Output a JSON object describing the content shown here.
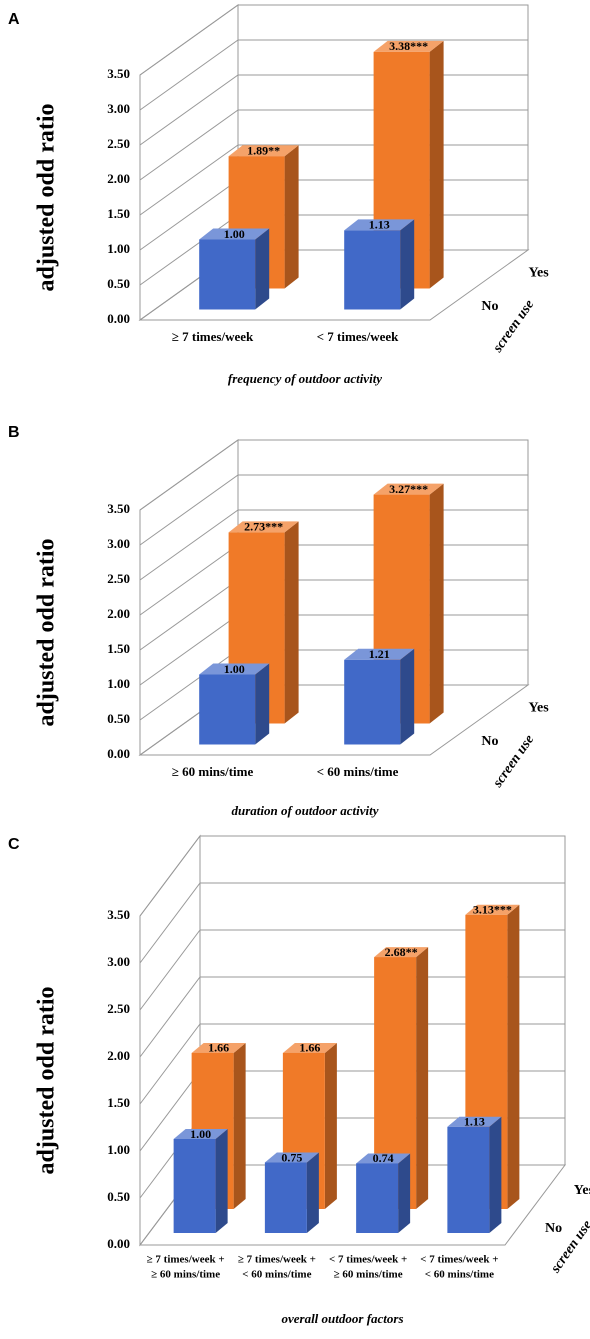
{
  "chart_data": [
    {
      "type": "bar",
      "panel_label": "A",
      "ylabel": "adjusted odd ratio",
      "xlabel": "frequency of outdoor activity",
      "depth_label": "screen use",
      "categories": [
        "≥ 7 times/week",
        "< 7 times/week"
      ],
      "series": [
        {
          "name": "No",
          "color": "#4169c8",
          "values": [
            1.0,
            1.13
          ],
          "value_labels": [
            "1.00",
            "1.13"
          ]
        },
        {
          "name": "Yes",
          "color": "#f07a28",
          "values": [
            1.89,
            3.38
          ],
          "value_labels": [
            "1.89**",
            "3.38***"
          ]
        }
      ],
      "ylim": [
        0,
        3.5
      ],
      "yticks": [
        {
          "value": 0,
          "label": "0.00"
        },
        {
          "value": 0.5,
          "label": "0.50"
        },
        {
          "value": 1,
          "label": "1.00"
        },
        {
          "value": 1.5,
          "label": "1.50"
        },
        {
          "value": 2,
          "label": "2.00"
        },
        {
          "value": 2.5,
          "label": "2.50"
        },
        {
          "value": 3,
          "label": "3.00"
        },
        {
          "value": 3.5,
          "label": "3.50"
        }
      ],
      "grid": true
    },
    {
      "type": "bar",
      "panel_label": "B",
      "ylabel": "adjusted odd ratio",
      "xlabel": "duration of outdoor activity",
      "depth_label": "screen use",
      "categories": [
        "≥ 60 mins/time",
        "< 60 mins/time"
      ],
      "series": [
        {
          "name": "No",
          "color": "#4169c8",
          "values": [
            1.0,
            1.21
          ],
          "value_labels": [
            "1.00",
            "1.21"
          ]
        },
        {
          "name": "Yes",
          "color": "#f07a28",
          "values": [
            2.73,
            3.27
          ],
          "value_labels": [
            "2.73***",
            "3.27***"
          ]
        }
      ],
      "ylim": [
        0,
        3.5
      ],
      "yticks": [
        {
          "value": 0,
          "label": "0.00"
        },
        {
          "value": 0.5,
          "label": "0.50"
        },
        {
          "value": 1,
          "label": "1.00"
        },
        {
          "value": 1.5,
          "label": "1.50"
        },
        {
          "value": 2,
          "label": "2.00"
        },
        {
          "value": 2.5,
          "label": "2.50"
        },
        {
          "value": 3,
          "label": "3.00"
        },
        {
          "value": 3.5,
          "label": "3.50"
        }
      ],
      "grid": true
    },
    {
      "type": "bar",
      "panel_label": "C",
      "ylabel": "adjusted odd ratio",
      "xlabel": "overall outdoor factors",
      "depth_label": "screen use",
      "categories": [
        [
          "≥ 7 times/week +",
          "≥ 60 mins/time"
        ],
        [
          "≥ 7 times/week +",
          "< 60 mins/time"
        ],
        [
          "< 7 times/week +",
          "≥ 60 mins/time"
        ],
        [
          "< 7 times/week +",
          "< 60 mins/time"
        ]
      ],
      "series": [
        {
          "name": "No",
          "color": "#4169c8",
          "values": [
            1.0,
            0.75,
            0.74,
            1.13
          ],
          "value_labels": [
            "1.00",
            "0.75",
            "0.74",
            "1.13"
          ]
        },
        {
          "name": "Yes",
          "color": "#f07a28",
          "values": [
            1.66,
            1.66,
            2.68,
            3.13
          ],
          "value_labels": [
            "1.66",
            "1.66",
            "2.68**",
            "3.13***"
          ]
        }
      ],
      "ylim": [
        0,
        3.5
      ],
      "yticks": [
        {
          "value": 0,
          "label": "0.00"
        },
        {
          "value": 0.5,
          "label": "0.50"
        },
        {
          "value": 1,
          "label": "1.00"
        },
        {
          "value": 1.5,
          "label": "1.50"
        },
        {
          "value": 2,
          "label": "2.00"
        },
        {
          "value": 2.5,
          "label": "2.50"
        },
        {
          "value": 3,
          "label": "3.00"
        },
        {
          "value": 3.5,
          "label": "3.50"
        }
      ],
      "grid": true
    }
  ]
}
